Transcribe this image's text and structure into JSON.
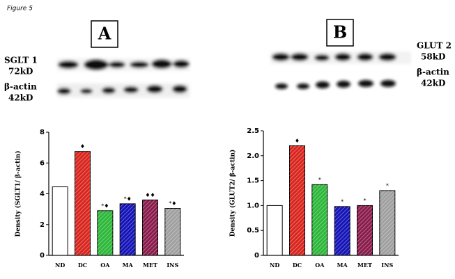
{
  "figure_label": "Figure 5",
  "panels": [
    {
      "letter": "A",
      "blot_labels": [
        "SGLT 1",
        "72kD",
        "β-actin",
        "42kD"
      ]
    },
    {
      "letter": "B",
      "blot_labels": [
        "GLUT 2",
        "58kD",
        "β-actin",
        "42kD"
      ]
    }
  ],
  "chart_data": [
    {
      "type": "bar",
      "ylabel": "Density (SGLT1/ β-actin)",
      "categories": [
        "ND",
        "DC",
        "OA",
        "MA",
        "MET",
        "INS"
      ],
      "values": [
        4.45,
        6.75,
        2.9,
        3.35,
        3.6,
        3.05
      ],
      "annotations": [
        null,
        "♦",
        "*♦",
        "*♦",
        "♦♦",
        "*♦"
      ],
      "colors": [
        "#ffffff",
        "#d8261e",
        "#2db83a",
        "#1414b8",
        "#8a1c4c",
        "#a0a0a0"
      ],
      "ylim": [
        0,
        8
      ],
      "yticks": [
        0,
        2,
        4,
        6,
        8
      ]
    },
    {
      "type": "bar",
      "ylabel": "Density (GLUT2/ β-actin)",
      "categories": [
        "ND",
        "DC",
        "OA",
        "MA",
        "MET",
        "INS"
      ],
      "values": [
        1.0,
        2.2,
        1.42,
        0.98,
        1.0,
        1.3
      ],
      "annotations": [
        null,
        "♦",
        "*",
        "*",
        "*",
        "*"
      ],
      "colors": [
        "#ffffff",
        "#d8261e",
        "#2db83a",
        "#1414b8",
        "#8a1c4c",
        "#a0a0a0"
      ],
      "ylim": [
        0,
        2.5
      ],
      "yticks": [
        0,
        0.5,
        {
          "value": 1,
          "label": "1.0"
        },
        1.5,
        {
          "value": 2,
          "label": "2.0"
        },
        2.5
      ]
    }
  ]
}
